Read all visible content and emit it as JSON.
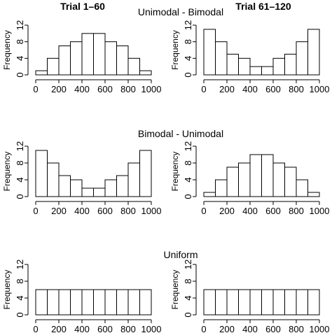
{
  "column_titles": [
    "Trial 1–60",
    "Trial 61–120"
  ],
  "row_titles": [
    "Unimodal - Bimodal",
    "Bimodal - Unimodal",
    "Uniform"
  ],
  "colors": {
    "background": "#ffffff",
    "bar_fill": "#ffffff",
    "line": "#000000"
  },
  "chart_data": [
    {
      "type": "bar",
      "histogram": true,
      "title": "",
      "xlabel": "",
      "ylabel": "Frequency",
      "bin_edges": [
        0,
        100,
        200,
        300,
        400,
        500,
        600,
        700,
        800,
        900,
        1000
      ],
      "values": [
        1,
        4,
        7,
        8,
        10,
        10,
        8,
        7,
        4,
        1
      ],
      "xlim": [
        0,
        1000
      ],
      "ylim": [
        0,
        12
      ],
      "xticks": [
        "0",
        "200",
        "400",
        "600",
        "800",
        "1000"
      ],
      "yticks": [
        "0",
        "4",
        "8",
        "12"
      ],
      "grid": false
    },
    {
      "type": "bar",
      "histogram": true,
      "title": "",
      "xlabel": "",
      "ylabel": "Frequency",
      "bin_edges": [
        0,
        100,
        200,
        300,
        400,
        500,
        600,
        700,
        800,
        900,
        1000
      ],
      "values": [
        11,
        8,
        5,
        4,
        2,
        2,
        4,
        5,
        8,
        11
      ],
      "xlim": [
        0,
        1000
      ],
      "ylim": [
        0,
        12
      ],
      "xticks": [
        "0",
        "200",
        "400",
        "600",
        "800",
        "1000"
      ],
      "yticks": [
        "0",
        "4",
        "8",
        "12"
      ],
      "grid": false
    },
    {
      "type": "bar",
      "histogram": true,
      "title": "",
      "xlabel": "",
      "ylabel": "Frequency",
      "bin_edges": [
        0,
        100,
        200,
        300,
        400,
        500,
        600,
        700,
        800,
        900,
        1000
      ],
      "values": [
        11,
        8,
        5,
        4,
        2,
        2,
        4,
        5,
        8,
        11
      ],
      "xlim": [
        0,
        1000
      ],
      "ylim": [
        0,
        12
      ],
      "xticks": [
        "0",
        "200",
        "400",
        "600",
        "800",
        "1000"
      ],
      "yticks": [
        "0",
        "4",
        "8",
        "12"
      ],
      "grid": false
    },
    {
      "type": "bar",
      "histogram": true,
      "title": "",
      "xlabel": "",
      "ylabel": "Frequency",
      "bin_edges": [
        0,
        100,
        200,
        300,
        400,
        500,
        600,
        700,
        800,
        900,
        1000
      ],
      "values": [
        1,
        4,
        7,
        8,
        10,
        10,
        8,
        7,
        4,
        1
      ],
      "xlim": [
        0,
        1000
      ],
      "ylim": [
        0,
        12
      ],
      "xticks": [
        "0",
        "200",
        "400",
        "600",
        "800",
        "1000"
      ],
      "yticks": [
        "0",
        "4",
        "8",
        "12"
      ],
      "grid": false
    },
    {
      "type": "bar",
      "histogram": true,
      "title": "",
      "xlabel": "",
      "ylabel": "Frequency",
      "bin_edges": [
        0,
        100,
        200,
        300,
        400,
        500,
        600,
        700,
        800,
        900,
        1000
      ],
      "values": [
        6,
        6,
        6,
        6,
        6,
        6,
        6,
        6,
        6,
        6
      ],
      "xlim": [
        0,
        1000
      ],
      "ylim": [
        0,
        12
      ],
      "xticks": [
        "0",
        "200",
        "400",
        "600",
        "800",
        "1000"
      ],
      "yticks": [
        "0",
        "4",
        "8",
        "12"
      ],
      "grid": false
    },
    {
      "type": "bar",
      "histogram": true,
      "title": "",
      "xlabel": "",
      "ylabel": "Frequency",
      "bin_edges": [
        0,
        100,
        200,
        300,
        400,
        500,
        600,
        700,
        800,
        900,
        1000
      ],
      "values": [
        6,
        6,
        6,
        6,
        6,
        6,
        6,
        6,
        6,
        6
      ],
      "xlim": [
        0,
        1000
      ],
      "ylim": [
        0,
        12
      ],
      "xticks": [
        "0",
        "200",
        "400",
        "600",
        "800",
        "1000"
      ],
      "yticks": [
        "0",
        "4",
        "8",
        "12"
      ],
      "grid": false
    }
  ]
}
